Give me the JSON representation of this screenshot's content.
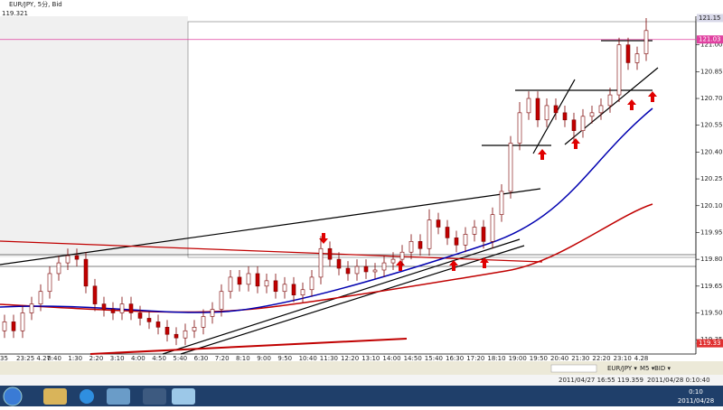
{
  "window": {
    "title": "EUR/JPY, 5分, Bid",
    "last_price": "119.321"
  },
  "chart_data": {
    "type": "candlestick",
    "open": [
      119.4,
      119.45,
      119.4,
      119.5,
      119.55,
      119.62,
      119.72,
      119.78,
      119.82,
      119.8,
      119.65,
      119.55,
      119.52,
      119.5,
      119.55,
      119.5,
      119.47,
      119.45,
      119.42,
      119.38,
      119.36,
      119.4,
      119.42,
      119.48,
      119.52,
      119.62,
      119.7,
      119.66,
      119.72,
      119.65,
      119.68,
      119.62,
      119.66,
      119.6,
      119.63,
      119.7,
      119.86,
      119.8,
      119.75,
      119.72,
      119.76,
      119.73,
      119.74,
      119.78,
      119.8,
      119.84,
      119.9,
      119.86,
      120.02,
      119.98,
      119.92,
      119.88,
      119.94,
      119.98,
      119.9,
      120.05,
      120.18,
      120.45,
      120.62,
      120.7,
      120.58,
      120.66,
      120.62,
      120.58,
      120.52,
      120.6,
      120.62,
      120.66,
      120.72,
      121.0,
      120.9,
      120.95
    ],
    "high": [
      119.49,
      119.49,
      119.54,
      119.59,
      119.66,
      119.76,
      119.82,
      119.86,
      119.86,
      119.84,
      119.69,
      119.59,
      119.56,
      119.59,
      119.59,
      119.54,
      119.51,
      119.49,
      119.46,
      119.42,
      119.44,
      119.46,
      119.52,
      119.56,
      119.66,
      119.74,
      119.74,
      119.76,
      119.76,
      119.72,
      119.72,
      119.7,
      119.7,
      119.67,
      119.74,
      119.93,
      119.9,
      119.84,
      119.79,
      119.8,
      119.8,
      119.78,
      119.82,
      119.84,
      119.88,
      119.94,
      119.94,
      120.08,
      120.06,
      120.02,
      119.96,
      119.98,
      120.02,
      120.02,
      120.09,
      120.22,
      120.49,
      120.68,
      120.74,
      120.74,
      120.7,
      120.7,
      120.66,
      120.62,
      120.64,
      120.66,
      120.7,
      120.76,
      121.04,
      121.04,
      120.99,
      121.15
    ],
    "low": [
      119.36,
      119.36,
      119.36,
      119.46,
      119.51,
      119.58,
      119.68,
      119.74,
      119.76,
      119.61,
      119.51,
      119.48,
      119.46,
      119.46,
      119.46,
      119.43,
      119.41,
      119.38,
      119.34,
      119.32,
      119.32,
      119.36,
      119.38,
      119.44,
      119.48,
      119.58,
      119.62,
      119.62,
      119.61,
      119.61,
      119.58,
      119.58,
      119.56,
      119.56,
      119.59,
      119.66,
      119.76,
      119.71,
      119.68,
      119.68,
      119.69,
      119.69,
      119.7,
      119.74,
      119.76,
      119.8,
      119.82,
      119.82,
      119.94,
      119.88,
      119.84,
      119.84,
      119.9,
      119.86,
      119.86,
      120.01,
      120.14,
      120.41,
      120.58,
      120.54,
      120.54,
      120.58,
      120.54,
      120.46,
      120.48,
      120.56,
      120.58,
      120.62,
      120.68,
      120.86,
      120.86,
      120.91
    ],
    "close": [
      119.45,
      119.4,
      119.5,
      119.55,
      119.62,
      119.72,
      119.78,
      119.82,
      119.8,
      119.65,
      119.55,
      119.52,
      119.5,
      119.55,
      119.5,
      119.47,
      119.45,
      119.42,
      119.38,
      119.36,
      119.4,
      119.42,
      119.48,
      119.52,
      119.62,
      119.7,
      119.66,
      119.72,
      119.65,
      119.68,
      119.62,
      119.66,
      119.6,
      119.63,
      119.7,
      119.86,
      119.8,
      119.75,
      119.72,
      119.76,
      119.73,
      119.74,
      119.78,
      119.8,
      119.84,
      119.9,
      119.86,
      120.02,
      119.98,
      119.92,
      119.88,
      119.94,
      119.98,
      119.9,
      120.05,
      120.18,
      120.45,
      120.62,
      120.7,
      120.58,
      120.66,
      120.62,
      120.58,
      120.52,
      120.6,
      120.62,
      120.66,
      120.72,
      121.0,
      120.9,
      120.95,
      121.08
    ],
    "up_color": "#ffffff",
    "down_color": "#c00000",
    "wick_color": "#7a0000",
    "ylim": [
      119.27,
      121.16
    ],
    "yticks": [
      {
        "value": 121,
        "label": "121.00"
      },
      120.85,
      {
        "value": 120.7,
        "label": "120.70"
      },
      120.55,
      {
        "value": 120.4,
        "label": "120.40"
      },
      120.25,
      {
        "value": 120.1,
        "label": "120.10"
      },
      119.95,
      {
        "value": 119.8,
        "label": "119.80"
      },
      119.65,
      {
        "value": 119.5,
        "label": "119.50"
      },
      119.35
    ],
    "price_markers": [
      {
        "value": 121.15,
        "label": "121.15",
        "color": "#d8d8e8"
      },
      {
        "value": 121.03,
        "label": "121.03",
        "color": "#e040a0"
      },
      {
        "value": 119.33,
        "label": "119.33",
        "color": "#e03030"
      }
    ],
    "time_labels": [
      "35",
      "23:25  4.27",
      "0:40",
      "1:30",
      "2:20",
      "3:10",
      "4:00",
      "4:50",
      "5:40",
      "6:30",
      "7:20",
      "8:10",
      "9:00",
      "9:50",
      "10:40",
      "11:30",
      "12:20",
      "13:10",
      "14:00",
      "14:50",
      "15:40",
      "16:30",
      "17:20",
      "18:10",
      "19:00",
      "19:50",
      "20:40",
      "21:30",
      "22:20",
      "23:10",
      "4.28"
    ]
  },
  "toolbar": {
    "symbol": "EUR/JPY ▾",
    "period": "M5 ▾",
    "side": "BID ▾"
  },
  "status": {
    "left": "2011/04/27 16:55   119.359",
    "right": "2011/04/28 0:10:40"
  },
  "taskbar": {
    "time": "0:10",
    "date": "2011/04/28"
  }
}
